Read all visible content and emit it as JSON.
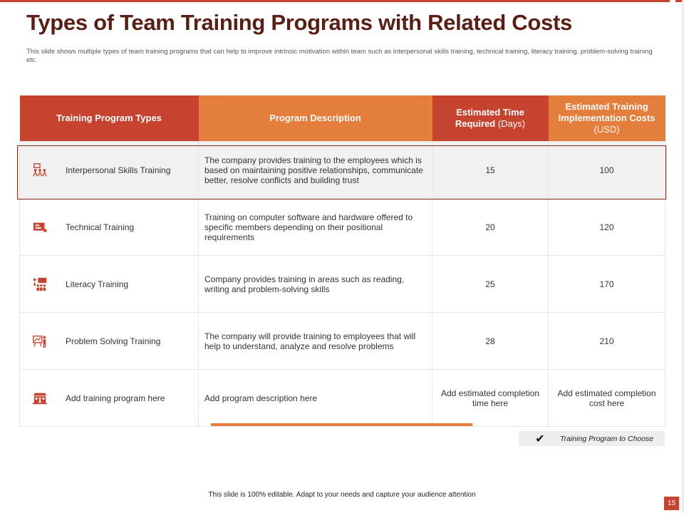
{
  "title": "Types of Team Training Programs with Related Costs",
  "subtitle": "This slide shows multiple types of team training programs that can help to improve intrinsic motivation within team such as interpersonal skills training, technical training, literacy training, problem-solving training etc.",
  "table": {
    "headers": {
      "type": "Training Program Types",
      "description": "Program Description",
      "time_bold": "Estimated Time Required",
      "time_unit": "(Days)",
      "cost_bold": "Estimated Training Implementation Costs",
      "cost_unit": "(USD)"
    },
    "rows": [
      {
        "icon": "team-presentation-icon",
        "type": "Interpersonal Skills Training",
        "description": "The company provides training to the employees which is based on maintaining positive relationships, communicate better, resolve conflicts and building trust",
        "time": "15",
        "cost": "100"
      },
      {
        "icon": "computer-screen-icon",
        "type": "Technical Training",
        "description": "Training on computer software and hardware offered to specific members depending on their positional requirements",
        "time": "20",
        "cost": "120"
      },
      {
        "icon": "classroom-board-icon",
        "type": "Literacy Training",
        "description": "Company provides training in areas such as reading, writing and problem-solving skills",
        "time": "25",
        "cost": "170"
      },
      {
        "icon": "presenter-chart-icon",
        "type": "Problem Solving Training",
        "description": "The company will provide training to employees that will help to understand, analyze and resolve problems",
        "time": "28",
        "cost": "210"
      },
      {
        "icon": "training-building-icon",
        "type": "Add training program here",
        "description": "Add program description here",
        "time": "Add estimated completion time here",
        "cost": "Add estimated completion cost here"
      }
    ]
  },
  "legend": {
    "check": "✔",
    "label": "Training Program to Choose"
  },
  "footer": "This slide is 100% editable.  Adapt to your needs and capture your audience attention",
  "page_number": "15",
  "colors": {
    "red": "#c5432f",
    "orange": "#e37e3d",
    "title": "#5a1e14"
  }
}
